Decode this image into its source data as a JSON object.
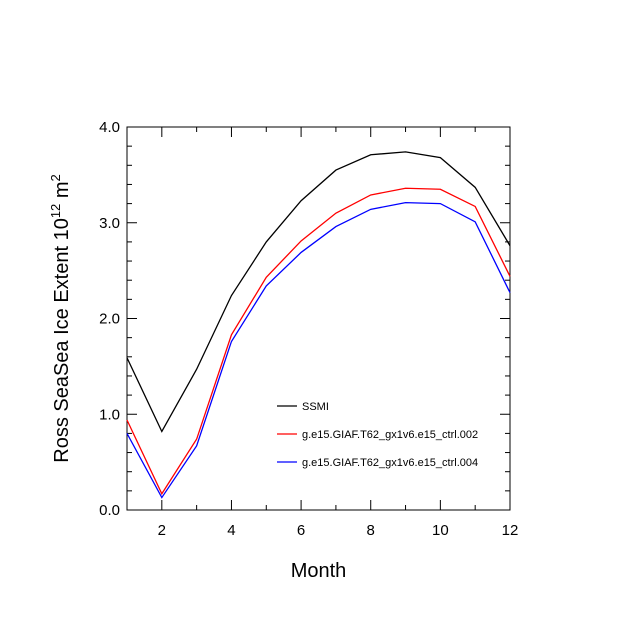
{
  "chart_data": {
    "type": "line",
    "title": "",
    "xlabel": "Month",
    "ylabel_main": "Ross SeaSea Ice Extent 10",
    "ylabel_exp": "12",
    "ylabel_unit": " m",
    "ylabel_unit_exp": "2",
    "xlim": [
      1,
      12
    ],
    "ylim": [
      0.0,
      4.0
    ],
    "x_ticks": [
      2,
      4,
      6,
      8,
      10,
      12
    ],
    "y_ticks": [
      0.0,
      1.0,
      2.0,
      3.0,
      4.0
    ],
    "y_tick_labels": [
      "0.0",
      "1.0",
      "2.0",
      "3.0",
      "4.0"
    ],
    "x": [
      1,
      2,
      3,
      4,
      5,
      6,
      7,
      8,
      9,
      10,
      11,
      12
    ],
    "series": [
      {
        "name": "SSMI",
        "color": "#000000",
        "values": [
          1.59,
          0.82,
          1.47,
          2.24,
          2.8,
          3.23,
          3.55,
          3.71,
          3.74,
          3.68,
          3.37,
          2.76
        ]
      },
      {
        "name": "g.e15.GIAF.T62_gx1v6.e15_ctrl.002",
        "color": "#ff0000",
        "values": [
          0.94,
          0.17,
          0.74,
          1.83,
          2.43,
          2.81,
          3.1,
          3.29,
          3.36,
          3.35,
          3.17,
          2.44
        ]
      },
      {
        "name": "g.e15.GIAF.T62_gx1v6.e15_ctrl.004",
        "color": "#0000ff",
        "values": [
          0.8,
          0.13,
          0.67,
          1.76,
          2.34,
          2.69,
          2.96,
          3.14,
          3.21,
          3.2,
          3.01,
          2.27
        ]
      }
    ],
    "legend_position": "lower-right"
  }
}
